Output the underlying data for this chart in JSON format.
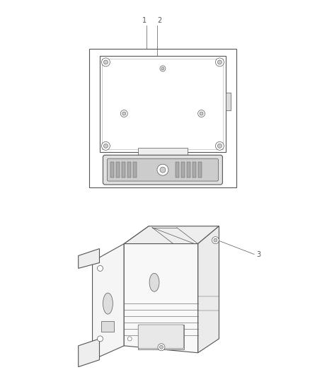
{
  "background_color": "#ffffff",
  "fig_width": 4.38,
  "fig_height": 5.33,
  "dpi": 100,
  "label_1": "1",
  "label_2": "2",
  "label_3": "3",
  "line_color": "#555555",
  "lw": 0.8,
  "tlw": 0.5
}
